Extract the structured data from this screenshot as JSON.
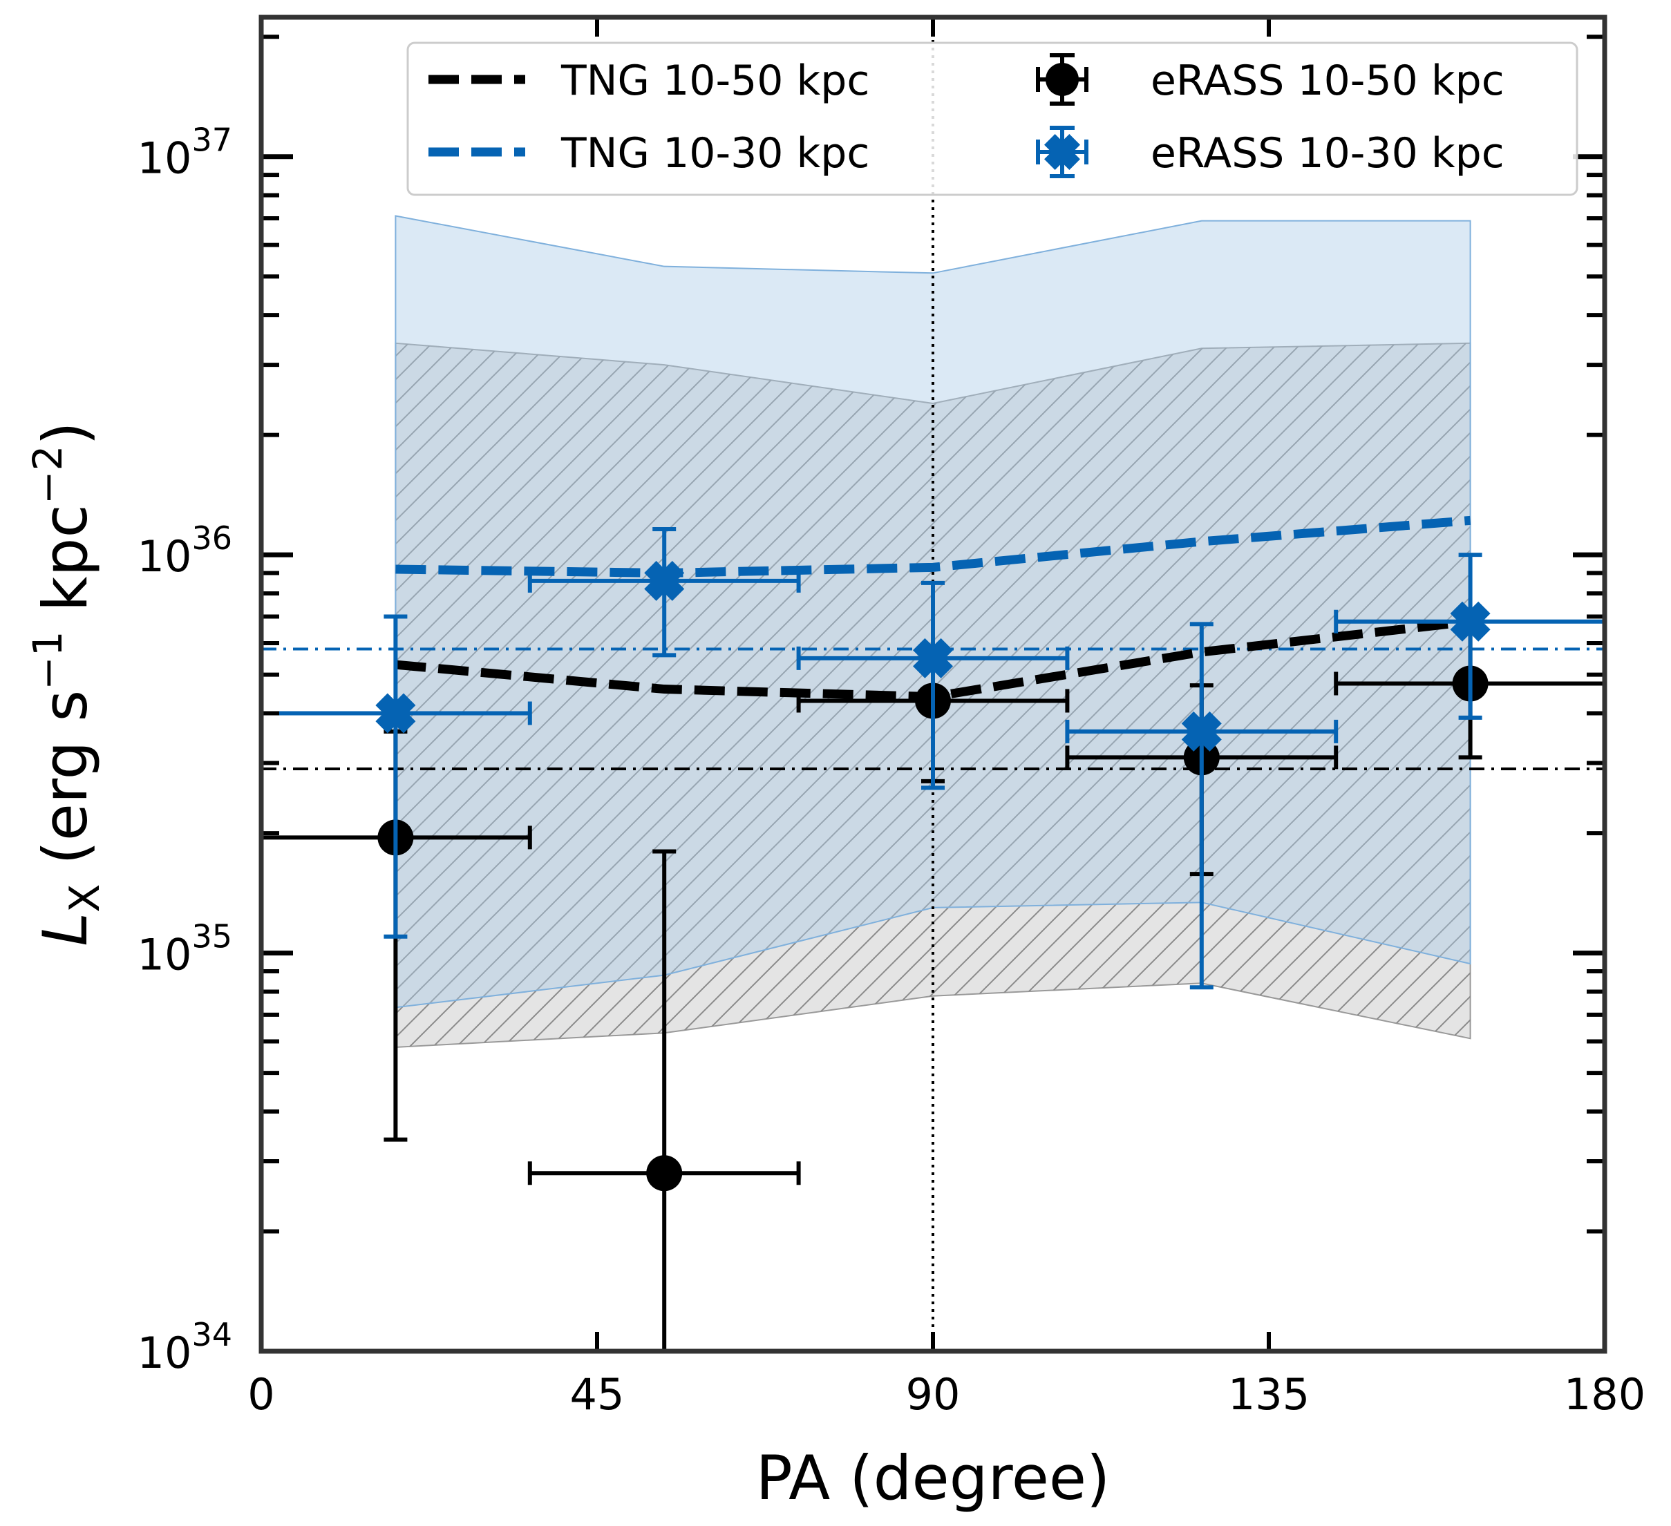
{
  "chart_data": {
    "type": "scatter",
    "title": "",
    "xlabel": "PA (degree)",
    "ylabel_main": "L",
    "ylabel_sub": "X",
    "ylabel_tail_1": " (erg s",
    "ylabel_sup_1": "−1",
    "ylabel_tail_2": " kpc",
    "ylabel_sup_2": "−2",
    "ylabel_tail_3": ")",
    "xlim": [
      0,
      180
    ],
    "ylim_log10": [
      34.0,
      37.35
    ],
    "x_ticks": [
      0,
      45,
      90,
      135,
      180
    ],
    "x_tick_labels": [
      "0",
      "45",
      "90",
      "135",
      "180"
    ],
    "y_ticks_log10": [
      34,
      35,
      36,
      37
    ],
    "y_tick_labels": [
      {
        "base": "10",
        "exp": "34"
      },
      {
        "base": "10",
        "exp": "35"
      },
      {
        "base": "10",
        "exp": "36"
      },
      {
        "base": "10",
        "exp": "37"
      }
    ],
    "vertical_line_x": 90,
    "legend": [
      {
        "label": "TNG 10-50 kpc",
        "kind": "dashed-line",
        "color": "#000000"
      },
      {
        "label": "eRASS 10-50 kpc",
        "kind": "errorbar-circle",
        "color": "#000000"
      },
      {
        "label": "TNG 10-30 kpc",
        "kind": "dashed-line",
        "color": "#0563b3"
      },
      {
        "label": "eRASS 10-30 kpc",
        "kind": "errorbar-cross",
        "color": "#0563b3"
      }
    ],
    "series": [
      {
        "name": "TNG 10-50 kpc",
        "kind": "line",
        "style": "dashed",
        "color": "#000000",
        "x": [
          18,
          54,
          90,
          126,
          162
        ],
        "y": [
          5.3e+35,
          4.6e+35,
          4.4e+35,
          5.7e+35,
          6.8e+35
        ],
        "band_low": [
          5.8e+34,
          6.3e+34,
          7.8e+34,
          8.4e+34,
          6.1e+34
        ],
        "band_high": [
          3.4e+36,
          3e+36,
          2.4e+36,
          3.3e+36,
          3.4e+36
        ],
        "band_color": "#bbbbbb",
        "band_hatched": true
      },
      {
        "name": "TNG 10-30 kpc",
        "kind": "line",
        "style": "dashed",
        "color": "#0563b3",
        "x": [
          18,
          54,
          90,
          126,
          162
        ],
        "y": [
          9.2e+35,
          9e+35,
          9.3e+35,
          1.08e+36,
          1.22e+36
        ],
        "band_low": [
          7.3e+34,
          8.8e+34,
          1.3e+35,
          1.34e+35,
          9.4e+34
        ],
        "band_high": [
          7.1e+36,
          5.3e+36,
          5.1e+36,
          6.9e+36,
          6.9e+36
        ],
        "band_color": "#a9cbe8"
      },
      {
        "name": "eRASS 10-50 kpc",
        "kind": "errorbar",
        "marker": "circle",
        "color": "#000000",
        "x": [
          18,
          54,
          90,
          126,
          162
        ],
        "xerr": 18,
        "y": [
          1.95e+35,
          2.8e+34,
          4.3e+35,
          3.1e+35,
          4.75e+35
        ],
        "y_low": [
          3.4e+34,
          1e+34,
          2.7e+35,
          1.58e+35,
          3.1e+35
        ],
        "y_high": [
          3.6e+35,
          1.8e+35,
          5.8e+35,
          4.7e+35,
          6.4e+35
        ]
      },
      {
        "name": "eRASS 10-30 kpc",
        "kind": "errorbar",
        "marker": "x",
        "color": "#0563b3",
        "x": [
          18,
          54,
          90,
          126,
          162
        ],
        "xerr": 18,
        "y": [
          4e+35,
          8.6e+35,
          5.5e+35,
          3.6e+35,
          6.8e+35
        ],
        "y_low": [
          1.1e+35,
          5.6e+35,
          2.6e+35,
          8.2e+34,
          3.9e+35
        ],
        "y_high": [
          7e+35,
          1.16e+36,
          8.5e+35,
          6.7e+35,
          1e+36
        ]
      },
      {
        "name": "eRASS 10-50 kpc mean",
        "kind": "hline",
        "style": "dashdot",
        "color": "#000000",
        "y": 2.9e+35
      },
      {
        "name": "eRASS 10-30 kpc mean",
        "kind": "hline",
        "style": "dashdot",
        "color": "#0563b3",
        "y": 5.8e+35
      }
    ]
  }
}
